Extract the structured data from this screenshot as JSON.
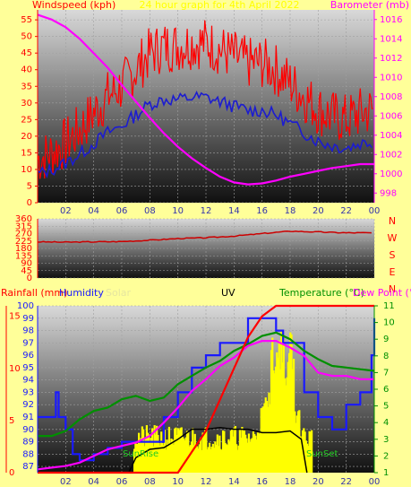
{
  "header": {
    "left": "Windspeed (kph)",
    "center": "24 hour graph for 4th April 2022",
    "right": "Barometer (mb)"
  },
  "panel2": {
    "compass": [
      "N",
      "W",
      "S",
      "E",
      "N"
    ]
  },
  "panel3": {
    "rain": "Rainfall (mm)",
    "humidity": "Humidity",
    "solar": "Solar",
    "uv": "UV",
    "temp": "Temperature (°C)",
    "dew": "Dew Point (°C",
    "sunrise": "SunRise",
    "sunset": "SunSet"
  },
  "colors": {
    "wind": "#ff0000",
    "avgwind": "#1c1cd0",
    "baro": "#ff00ff",
    "dir": "#cc0000",
    "humidity": "#1a1aff",
    "temp": "#009000",
    "dew": "#ff00ff",
    "uv": "#000000",
    "solar": "#ffff00",
    "rain": "#ff0000",
    "bg": "#ffff99"
  },
  "chart_data": [
    {
      "type": "line",
      "title": "24 hour graph for 4th April 2022",
      "xticks": [
        "02",
        "04",
        "06",
        "08",
        "10",
        "12",
        "14",
        "16",
        "18",
        "20",
        "22",
        "00"
      ],
      "yleft": {
        "label": "Windspeed (kph)",
        "ylim": [
          0,
          58
        ],
        "ticks": [
          0,
          5,
          10,
          15,
          20,
          25,
          30,
          35,
          40,
          45,
          50,
          55
        ]
      },
      "yright": {
        "label": "Barometer (mb)",
        "ylim": [
          997,
          1017
        ],
        "ticks": [
          998,
          1000,
          1002,
          1004,
          1006,
          1008,
          1010,
          1012,
          1014,
          1016
        ]
      },
      "series": [
        {
          "name": "Windspeed (kph)",
          "axis": "left",
          "x": [
            0,
            1,
            2,
            3,
            4,
            5,
            6,
            7,
            8,
            9,
            10,
            11,
            12,
            13,
            14,
            15,
            16,
            17,
            18,
            19,
            20,
            21,
            22,
            23,
            24
          ],
          "values": [
            13,
            15,
            18,
            22,
            27,
            32,
            35,
            40,
            45,
            47,
            47,
            48,
            48,
            46,
            44,
            42,
            42,
            40,
            36,
            32,
            28,
            26,
            25,
            27,
            28
          ]
        },
        {
          "name": "Barometer (mb)",
          "axis": "right",
          "x": [
            0,
            1,
            2,
            3,
            4,
            5,
            6,
            7,
            8,
            9,
            10,
            11,
            12,
            13,
            14,
            15,
            16,
            17,
            18,
            19,
            20,
            21,
            22,
            23,
            24
          ],
          "values": [
            1016.5,
            1016,
            1015.2,
            1014,
            1012.5,
            1011,
            1009.2,
            1007.5,
            1005.8,
            1004.2,
            1002.8,
            1001.6,
            1000.6,
            999.7,
            999.1,
            998.9,
            999,
            999.3,
            999.7,
            1000,
            1000.3,
            1000.6,
            1000.8,
            1001,
            1001
          ]
        }
      ]
    },
    {
      "type": "line",
      "xticks": [
        "02",
        "04",
        "06",
        "08",
        "10",
        "12",
        "14",
        "16",
        "18",
        "20",
        "22",
        "00"
      ],
      "ylim": [
        0,
        360
      ],
      "yticks": [
        0,
        45,
        90,
        135,
        180,
        225,
        270,
        315,
        360
      ],
      "series": [
        {
          "name": "Wind direction",
          "x": [
            0,
            2,
            4,
            6,
            8,
            10,
            12,
            14,
            16,
            18,
            20,
            22,
            24
          ],
          "values": [
            220,
            218,
            220,
            222,
            230,
            240,
            245,
            255,
            270,
            285,
            280,
            275,
            275
          ]
        }
      ]
    },
    {
      "type": "line",
      "xticks": [
        "02",
        "04",
        "06",
        "08",
        "10",
        "12",
        "14",
        "16",
        "18",
        "20",
        "22",
        "00"
      ],
      "yrain": {
        "label": "Rainfall (mm)",
        "ylim": [
          0,
          16
        ],
        "ticks": [
          0,
          5,
          10,
          15
        ]
      },
      "yhum": {
        "label": "Humidity",
        "ylim": [
          86.5,
          100
        ],
        "ticks": [
          87,
          88,
          89,
          90,
          91,
          92,
          93,
          94,
          95,
          96,
          97,
          98,
          99,
          100
        ]
      },
      "ytemp": {
        "label": "Temperature (°C)",
        "ylim": [
          1,
          11
        ],
        "ticks": [
          1,
          2,
          3,
          4,
          5,
          6,
          7,
          8,
          9,
          10,
          11
        ]
      },
      "series": [
        {
          "name": "Humidity",
          "axis": "hum",
          "x": [
            0,
            1,
            1.3,
            1.5,
            2,
            2.5,
            3,
            3.5,
            4,
            5,
            6,
            7,
            8,
            9,
            10,
            11,
            12,
            13,
            14,
            15,
            16,
            17,
            17.5,
            18,
            19,
            20,
            21,
            22,
            23,
            23.8,
            24
          ],
          "values": [
            91,
            91,
            93,
            91,
            90,
            88,
            87.5,
            87.5,
            88,
            88.5,
            89,
            89,
            89,
            91,
            93,
            95,
            96,
            97,
            97,
            99,
            99,
            98,
            97,
            97,
            93,
            91,
            90,
            92,
            93,
            96,
            99
          ]
        },
        {
          "name": "Temperature (°C)",
          "axis": "temp",
          "x": [
            0,
            1,
            2,
            3,
            4,
            5,
            6,
            7,
            8,
            9,
            10,
            11,
            12,
            13,
            14,
            15,
            16,
            17,
            18,
            19,
            20,
            21,
            22,
            23,
            24
          ],
          "values": [
            3.2,
            3.2,
            3.5,
            4.2,
            4.7,
            4.9,
            5.4,
            5.6,
            5.3,
            5.5,
            6.3,
            6.8,
            7.3,
            7.7,
            8.3,
            8.7,
            9.2,
            9.4,
            9.0,
            8.3,
            7.8,
            7.4,
            7.3,
            7.2,
            7.1
          ]
        },
        {
          "name": "Dew Point (°C)",
          "axis": "temp",
          "x": [
            0,
            1,
            2,
            3,
            4,
            5,
            6,
            7,
            8,
            9,
            10,
            11,
            12,
            13,
            14,
            15,
            16,
            17,
            18,
            19,
            20,
            21,
            22,
            23,
            24
          ],
          "values": [
            1.2,
            1.3,
            1.4,
            1.6,
            2.0,
            2.4,
            2.6,
            2.8,
            3.2,
            4.0,
            4.9,
            5.9,
            6.6,
            7.4,
            7.9,
            8.6,
            8.9,
            8.9,
            8.5,
            8.0,
            7.0,
            6.8,
            6.8,
            6.6,
            6.6
          ]
        },
        {
          "name": "UV",
          "axis": "temp",
          "x": [
            6.5,
            7,
            8,
            9,
            10,
            11,
            12,
            13,
            14,
            15,
            16,
            17,
            18,
            18.8,
            19.2
          ],
          "values": [
            1,
            1.9,
            2.4,
            2.5,
            3.0,
            3.6,
            3.6,
            3.7,
            3.6,
            3.6,
            3.4,
            3.4,
            3.5,
            3.0,
            1
          ]
        },
        {
          "name": "Rainfall (mm)",
          "axis": "rain",
          "x": [
            0,
            10,
            11,
            12,
            13,
            14,
            15,
            16,
            17,
            18,
            19,
            20,
            21,
            22,
            23,
            24
          ],
          "values": [
            0,
            0,
            2,
            4,
            7,
            10,
            13,
            15,
            16,
            16,
            16,
            16,
            16,
            16,
            16,
            16
          ]
        }
      ]
    }
  ]
}
